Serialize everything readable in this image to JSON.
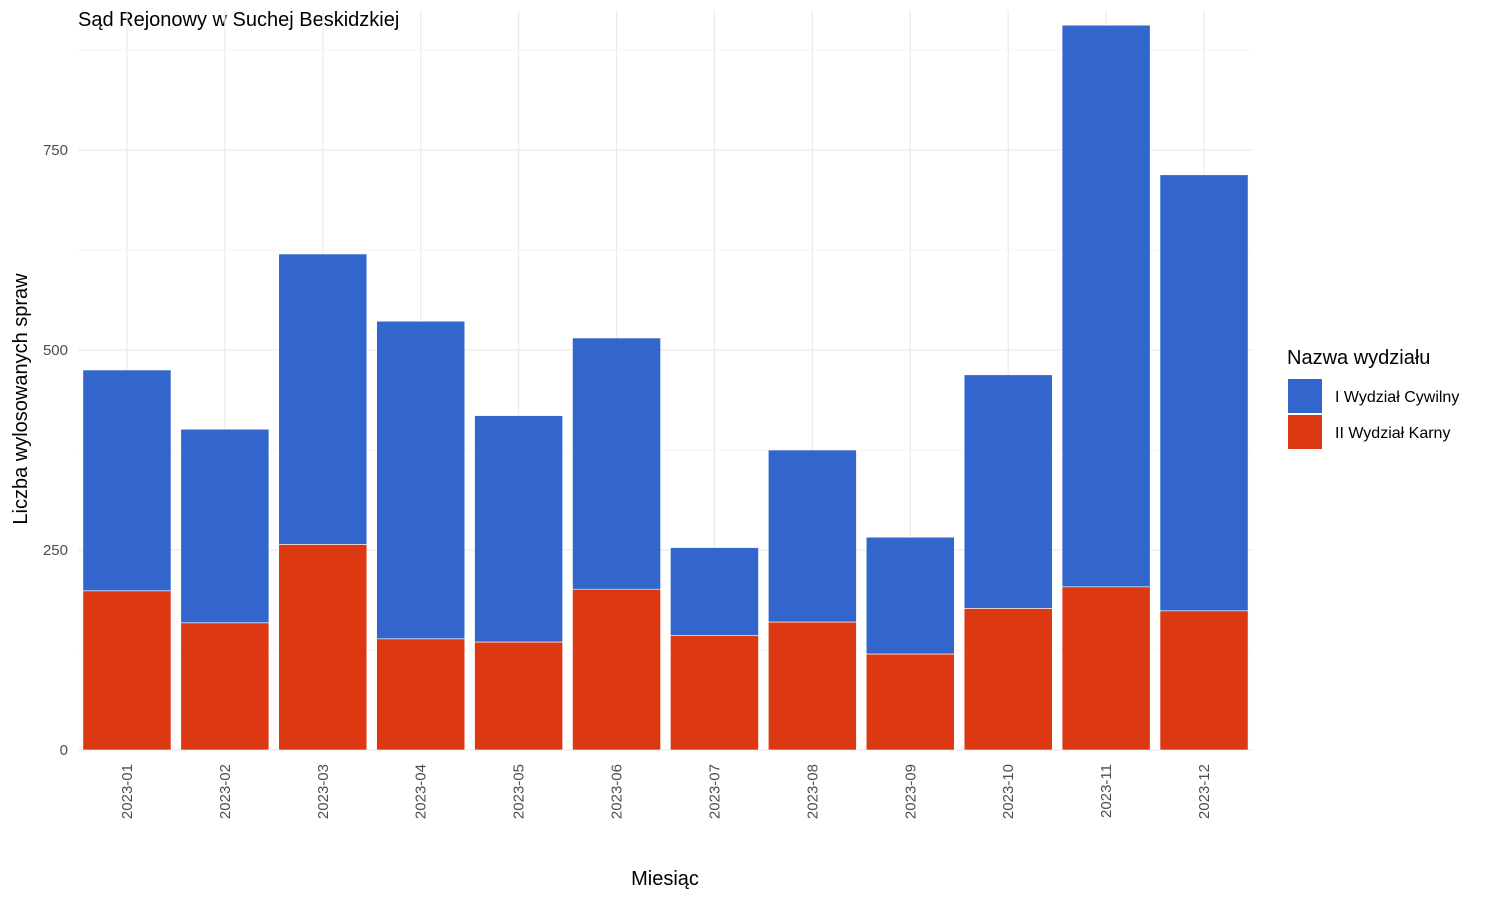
{
  "chart_data": {
    "type": "bar",
    "stacked": true,
    "title": "Sąd Rejonowy w Suchej Beskidzkiej",
    "xlabel": "Miesiąc",
    "ylabel": "Liczba wylosowanych spraw",
    "categories": [
      "2023-01",
      "2023-02",
      "2023-03",
      "2023-04",
      "2023-05",
      "2023-06",
      "2023-07",
      "2023-08",
      "2023-09",
      "2023-10",
      "2023-11",
      "2023-12"
    ],
    "series": [
      {
        "name": "II Wydział Karny",
        "color": "#DC3912",
        "values": [
          199,
          159,
          257,
          139,
          135,
          201,
          143,
          160,
          120,
          177,
          204,
          174
        ]
      },
      {
        "name": "I Wydział Cywilny",
        "color": "#3366CC",
        "values": [
          276,
          242,
          363,
          397,
          283,
          314,
          110,
          215,
          146,
          292,
          702,
          545
        ]
      }
    ],
    "ylim": [
      0,
      925
    ],
    "yticks": [
      0,
      250,
      500,
      750
    ],
    "grid": true,
    "legend": {
      "title": "Nazwa wydziału",
      "position": "right",
      "entries": [
        {
          "label": "I Wydział Cywilny",
          "color": "#3366CC"
        },
        {
          "label": "II Wydział Karny",
          "color": "#DC3912"
        }
      ]
    }
  }
}
